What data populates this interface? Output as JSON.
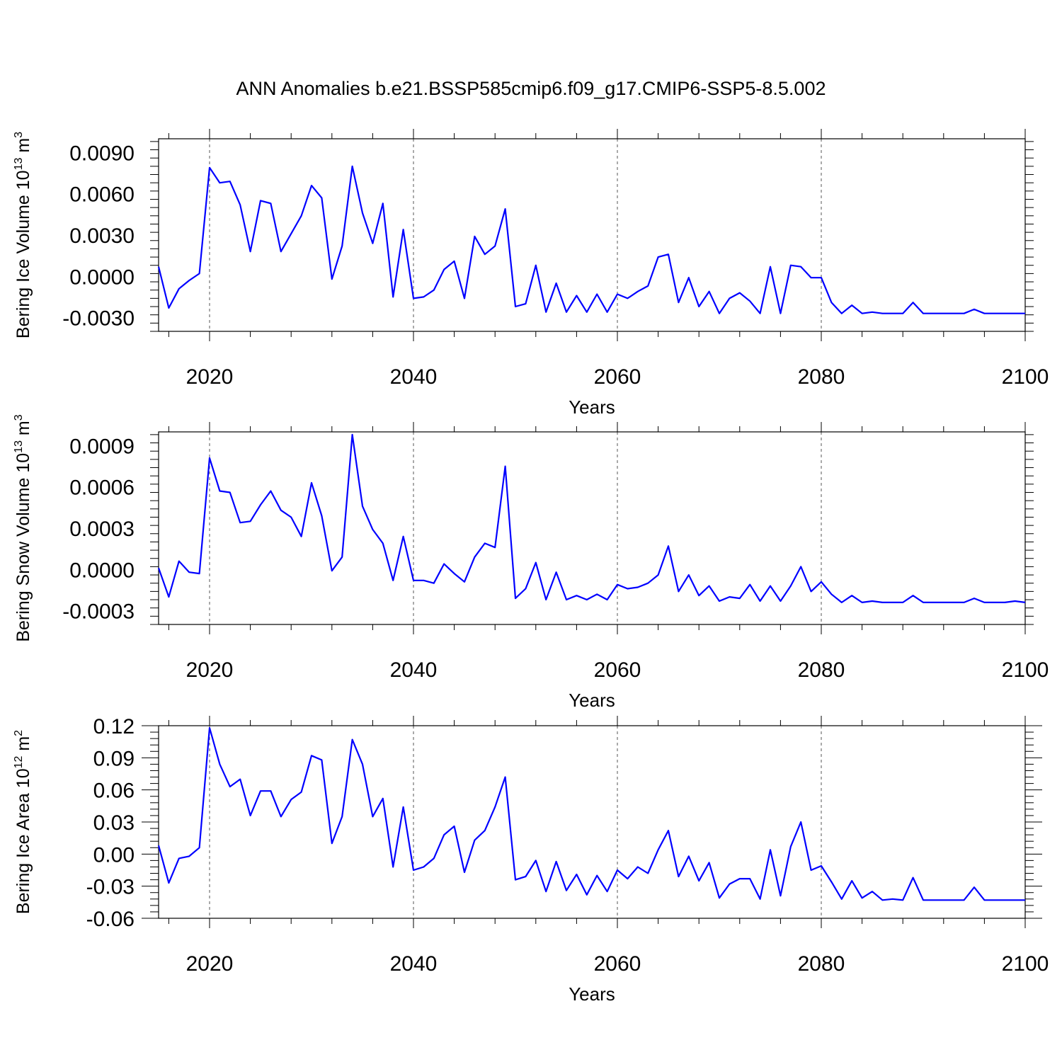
{
  "title": "ANN Anomalies b.e21.BSSP585cmip6.f09_g17.CMIP6-SSP5-8.5.002",
  "colors": {
    "line": "#0000ff",
    "axis": "#000000",
    "grid": "#555555"
  },
  "chart_data": [
    {
      "type": "line",
      "title": "ANN Anomalies b.e21.BSSP585cmip6.f09_g17.CMIP6-SSP5-8.5.002",
      "xlabel": "Years",
      "ylabel": "Bering Ice Volume 10",
      "ylabel_exp": "13",
      "ylabel_unit": "m",
      "ylabel_unit_exp": "3",
      "xlim": [
        2015,
        2100
      ],
      "ylim": [
        -0.004,
        0.01
      ],
      "xticks": [
        "2020",
        "2040",
        "2060",
        "2080",
        "2100"
      ],
      "yticks": [
        "0.0090",
        "0.0060",
        "0.0030",
        "0.0000",
        "-0.0030"
      ],
      "grid": "vertical dashed at major x ticks",
      "x": [
        2015,
        2016,
        2017,
        2018,
        2019,
        2020,
        2021,
        2022,
        2023,
        2024,
        2025,
        2026,
        2027,
        2028,
        2029,
        2030,
        2031,
        2032,
        2033,
        2034,
        2035,
        2036,
        2037,
        2038,
        2039,
        2040,
        2041,
        2042,
        2043,
        2044,
        2045,
        2046,
        2047,
        2048,
        2049,
        2050,
        2051,
        2052,
        2053,
        2054,
        2055,
        2056,
        2057,
        2058,
        2059,
        2060,
        2061,
        2062,
        2063,
        2064,
        2065,
        2066,
        2067,
        2068,
        2069,
        2070,
        2071,
        2072,
        2073,
        2074,
        2075,
        2076,
        2077,
        2078,
        2079,
        2080,
        2081,
        2082,
        2083,
        2084,
        2085,
        2086,
        2087,
        2088,
        2089,
        2090,
        2091,
        2092,
        2093,
        2094,
        2095,
        2096,
        2097,
        2098,
        2099,
        2100
      ],
      "series": [
        {
          "values": [
            0.0007,
            -0.0023,
            -0.0009,
            -0.0003,
            0.0002,
            0.0079,
            0.0068,
            0.0069,
            0.0052,
            0.0018,
            0.0055,
            0.0053,
            0.0018,
            0.0031,
            0.0044,
            0.0066,
            0.0057,
            -0.0002,
            0.0022,
            0.008,
            0.0046,
            0.0024,
            0.0053,
            -0.0015,
            0.0034,
            -0.0016,
            -0.0015,
            -0.001,
            0.0005,
            0.0011,
            -0.0016,
            0.0029,
            0.0016,
            0.0022,
            0.0049,
            -0.0022,
            -0.002,
            0.0008,
            -0.0026,
            -0.0005,
            -0.0026,
            -0.0014,
            -0.0026,
            -0.0013,
            -0.0026,
            -0.0013,
            -0.0016,
            -0.0011,
            -0.0007,
            0.0014,
            0.0016,
            -0.0019,
            -0.0001,
            -0.0022,
            -0.0011,
            -0.0027,
            -0.0016,
            -0.0012,
            -0.0018,
            -0.0027,
            0.0007,
            -0.0027,
            0.0008,
            0.0007,
            -0.0001,
            -0.0001,
            -0.0019,
            -0.0027,
            -0.0021,
            -0.0027,
            -0.0026,
            -0.0027,
            -0.0027,
            -0.0027,
            -0.0019,
            -0.0027,
            -0.0027,
            -0.0027,
            -0.0027,
            -0.0027,
            -0.0024,
            -0.0027,
            -0.0027,
            -0.0027,
            -0.0027,
            -0.0027
          ]
        }
      ]
    },
    {
      "type": "line",
      "xlabel": "Years",
      "ylabel": "Bering Snow Volume 10",
      "ylabel_exp": "13",
      "ylabel_unit": "m",
      "ylabel_unit_exp": "3",
      "xlim": [
        2015,
        2100
      ],
      "ylim": [
        -0.0004,
        0.001
      ],
      "xticks": [
        "2020",
        "2040",
        "2060",
        "2080",
        "2100"
      ],
      "yticks": [
        "0.0009",
        "0.0006",
        "0.0003",
        "0.0000",
        "-0.0003"
      ],
      "grid": "vertical dashed at major x ticks",
      "x": [
        2015,
        2016,
        2017,
        2018,
        2019,
        2020,
        2021,
        2022,
        2023,
        2024,
        2025,
        2026,
        2027,
        2028,
        2029,
        2030,
        2031,
        2032,
        2033,
        2034,
        2035,
        2036,
        2037,
        2038,
        2039,
        2040,
        2041,
        2042,
        2043,
        2044,
        2045,
        2046,
        2047,
        2048,
        2049,
        2050,
        2051,
        2052,
        2053,
        2054,
        2055,
        2056,
        2057,
        2058,
        2059,
        2060,
        2061,
        2062,
        2063,
        2064,
        2065,
        2066,
        2067,
        2068,
        2069,
        2070,
        2071,
        2072,
        2073,
        2074,
        2075,
        2076,
        2077,
        2078,
        2079,
        2080,
        2081,
        2082,
        2083,
        2084,
        2085,
        2086,
        2087,
        2088,
        2089,
        2090,
        2091,
        2092,
        2093,
        2094,
        2095,
        2096,
        2097,
        2098,
        2099,
        2100
      ],
      "series": [
        {
          "values": [
            1e-05,
            -0.0002,
            6e-05,
            -2e-05,
            -3e-05,
            0.00081,
            0.00057,
            0.00056,
            0.00034,
            0.00035,
            0.00047,
            0.00057,
            0.00043,
            0.00038,
            0.00024,
            0.00063,
            0.00039,
            -1e-05,
            9e-05,
            0.00098,
            0.00046,
            0.00029,
            0.00019,
            -8e-05,
            0.00024,
            -8e-05,
            -8e-05,
            -0.0001,
            4e-05,
            -3e-05,
            -9e-05,
            9e-05,
            0.00019,
            0.00016,
            0.00075,
            -0.00021,
            -0.00014,
            5e-05,
            -0.00022,
            -2e-05,
            -0.00022,
            -0.00019,
            -0.00022,
            -0.00018,
            -0.00022,
            -0.00011,
            -0.00014,
            -0.00013,
            -0.0001,
            -4e-05,
            0.00017,
            -0.00016,
            -4e-05,
            -0.00019,
            -0.00012,
            -0.00023,
            -0.0002,
            -0.00021,
            -0.00011,
            -0.00023,
            -0.00012,
            -0.00023,
            -0.00012,
            2e-05,
            -0.00016,
            -9e-05,
            -0.00018,
            -0.00024,
            -0.00019,
            -0.00024,
            -0.00023,
            -0.00024,
            -0.00024,
            -0.00024,
            -0.00019,
            -0.00024,
            -0.00024,
            -0.00024,
            -0.00024,
            -0.00024,
            -0.00021,
            -0.00024,
            -0.00024,
            -0.00024,
            -0.00023,
            -0.00024
          ]
        }
      ]
    },
    {
      "type": "line",
      "xlabel": "Years",
      "ylabel": "Bering Ice Area 10",
      "ylabel_exp": "12",
      "ylabel_unit": "m",
      "ylabel_unit_exp": "2",
      "xlim": [
        2015,
        2100
      ],
      "ylim": [
        -0.06,
        0.12
      ],
      "xticks": [
        "2020",
        "2040",
        "2060",
        "2080",
        "2100"
      ],
      "yticks": [
        "0.12",
        "0.09",
        "0.06",
        "0.03",
        "0.00",
        "-0.03",
        "-0.06"
      ],
      "grid": "vertical dashed at major x ticks",
      "x": [
        2015,
        2016,
        2017,
        2018,
        2019,
        2020,
        2021,
        2022,
        2023,
        2024,
        2025,
        2026,
        2027,
        2028,
        2029,
        2030,
        2031,
        2032,
        2033,
        2034,
        2035,
        2036,
        2037,
        2038,
        2039,
        2040,
        2041,
        2042,
        2043,
        2044,
        2045,
        2046,
        2047,
        2048,
        2049,
        2050,
        2051,
        2052,
        2053,
        2054,
        2055,
        2056,
        2057,
        2058,
        2059,
        2060,
        2061,
        2062,
        2063,
        2064,
        2065,
        2066,
        2067,
        2068,
        2069,
        2070,
        2071,
        2072,
        2073,
        2074,
        2075,
        2076,
        2077,
        2078,
        2079,
        2080,
        2081,
        2082,
        2083,
        2084,
        2085,
        2086,
        2087,
        2088,
        2089,
        2090,
        2091,
        2092,
        2093,
        2094,
        2095,
        2096,
        2097,
        2098,
        2099,
        2100
      ],
      "series": [
        {
          "values": [
            0.008,
            -0.027,
            -0.004,
            -0.002,
            0.006,
            0.118,
            0.084,
            0.063,
            0.07,
            0.036,
            0.059,
            0.059,
            0.035,
            0.051,
            0.058,
            0.092,
            0.088,
            0.01,
            0.035,
            0.107,
            0.084,
            0.035,
            0.052,
            -0.012,
            0.044,
            -0.015,
            -0.012,
            -0.004,
            0.018,
            0.026,
            -0.017,
            0.013,
            0.022,
            0.044,
            0.072,
            -0.024,
            -0.021,
            -0.006,
            -0.035,
            -0.007,
            -0.034,
            -0.019,
            -0.038,
            -0.02,
            -0.035,
            -0.015,
            -0.023,
            -0.012,
            -0.018,
            0.004,
            0.022,
            -0.021,
            -0.002,
            -0.025,
            -0.008,
            -0.041,
            -0.028,
            -0.023,
            -0.023,
            -0.042,
            0.004,
            -0.039,
            0.007,
            0.03,
            -0.015,
            -0.011,
            -0.026,
            -0.042,
            -0.025,
            -0.041,
            -0.035,
            -0.043,
            -0.042,
            -0.043,
            -0.022,
            -0.043,
            -0.043,
            -0.043,
            -0.043,
            -0.043,
            -0.031,
            -0.043,
            -0.043,
            -0.043,
            -0.043,
            -0.043
          ]
        }
      ]
    }
  ]
}
